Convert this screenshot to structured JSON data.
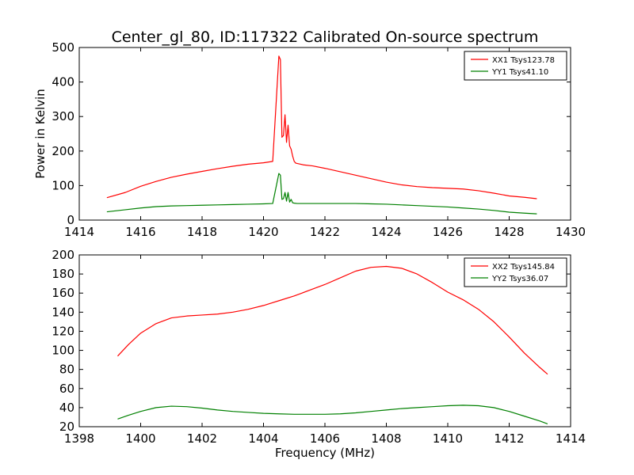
{
  "figure": {
    "title": "Center_gl_80, ID:117322 Calibrated On-source spectrum"
  },
  "chart_data": [
    {
      "type": "line",
      "xlabel": "",
      "ylabel": "Power in Kelvin",
      "xlim": [
        1414,
        1430
      ],
      "ylim": [
        0,
        500
      ],
      "xticks": [
        1414,
        1416,
        1418,
        1420,
        1422,
        1424,
        1426,
        1428,
        1430
      ],
      "yticks": [
        0,
        100,
        200,
        300,
        400,
        500
      ],
      "legend_position": "top-right",
      "series": [
        {
          "name": "XX1 Tsys123.78",
          "color": "#ff0000",
          "x": [
            1414.9,
            1415.5,
            1416.0,
            1416.5,
            1417.0,
            1417.5,
            1418.0,
            1418.5,
            1419.0,
            1419.5,
            1420.0,
            1420.3,
            1420.5,
            1420.55,
            1420.6,
            1420.65,
            1420.7,
            1420.75,
            1420.8,
            1420.85,
            1420.9,
            1420.95,
            1421.0,
            1421.05,
            1421.15,
            1421.3,
            1421.6,
            1422.0,
            1422.5,
            1423.0,
            1423.5,
            1424.0,
            1424.5,
            1425.0,
            1425.5,
            1426.0,
            1426.5,
            1427.0,
            1427.5,
            1428.0,
            1428.5,
            1428.9
          ],
          "y": [
            65,
            80,
            98,
            112,
            124,
            133,
            141,
            149,
            156,
            162,
            166,
            170,
            475,
            465,
            240,
            245,
            305,
            225,
            275,
            215,
            205,
            185,
            170,
            165,
            163,
            160,
            157,
            150,
            140,
            130,
            120,
            110,
            102,
            97,
            94,
            92,
            90,
            85,
            78,
            70,
            66,
            62
          ]
        },
        {
          "name": "YY1 Tsys41.10",
          "color": "#008000",
          "x": [
            1414.9,
            1415.5,
            1416.0,
            1416.5,
            1417.0,
            1417.5,
            1418.0,
            1418.5,
            1419.0,
            1419.5,
            1420.0,
            1420.3,
            1420.5,
            1420.55,
            1420.6,
            1420.65,
            1420.7,
            1420.75,
            1420.8,
            1420.85,
            1420.9,
            1420.95,
            1421.0,
            1421.1,
            1421.3,
            1421.6,
            1422.0,
            1422.5,
            1423.0,
            1423.5,
            1424.0,
            1424.5,
            1425.0,
            1425.5,
            1426.0,
            1426.5,
            1427.0,
            1427.5,
            1428.0,
            1428.5,
            1428.9
          ],
          "y": [
            24,
            30,
            35,
            39,
            41,
            42,
            43,
            44,
            45,
            46,
            47,
            48,
            135,
            130,
            60,
            62,
            80,
            55,
            80,
            52,
            60,
            50,
            49,
            48,
            48,
            48,
            48,
            48,
            48,
            47,
            46,
            44,
            42,
            40,
            38,
            35,
            32,
            28,
            23,
            20,
            18
          ]
        }
      ]
    },
    {
      "type": "line",
      "xlabel": "Frequency (MHz)",
      "ylabel": "",
      "xlim": [
        1398,
        1414
      ],
      "ylim": [
        20,
        200
      ],
      "xticks": [
        1398,
        1400,
        1402,
        1404,
        1406,
        1408,
        1410,
        1412,
        1414
      ],
      "yticks": [
        20,
        40,
        60,
        80,
        100,
        120,
        140,
        160,
        180,
        200
      ],
      "legend_position": "top-right",
      "series": [
        {
          "name": "XX2 Tsys145.84",
          "color": "#ff0000",
          "x": [
            1399.25,
            1399.6,
            1400.0,
            1400.5,
            1401.0,
            1401.5,
            1402.0,
            1402.5,
            1403.0,
            1403.5,
            1404.0,
            1404.5,
            1405.0,
            1405.5,
            1406.0,
            1406.5,
            1407.0,
            1407.5,
            1408.0,
            1408.5,
            1409.0,
            1409.5,
            1410.0,
            1410.5,
            1411.0,
            1411.5,
            1412.0,
            1412.5,
            1413.0,
            1413.25
          ],
          "y": [
            94,
            106,
            118,
            128,
            134,
            136,
            137,
            138,
            140,
            143,
            147,
            152,
            157,
            163,
            169,
            176,
            183,
            187,
            188,
            186,
            180,
            171,
            161,
            153,
            143,
            130,
            114,
            97,
            82,
            75
          ]
        },
        {
          "name": "YY2 Tsys36.07",
          "color": "#008000",
          "x": [
            1399.25,
            1399.6,
            1400.0,
            1400.5,
            1401.0,
            1401.5,
            1402.0,
            1402.5,
            1403.0,
            1403.5,
            1404.0,
            1404.5,
            1405.0,
            1405.5,
            1406.0,
            1406.5,
            1407.0,
            1407.5,
            1408.0,
            1408.5,
            1409.0,
            1409.5,
            1410.0,
            1410.5,
            1411.0,
            1411.5,
            1412.0,
            1412.5,
            1413.0,
            1413.25
          ],
          "y": [
            28,
            32,
            36,
            40,
            41.5,
            41,
            39.5,
            37.5,
            36,
            35,
            34,
            33.5,
            33,
            33,
            33,
            33.5,
            34.5,
            36,
            37.5,
            39,
            40,
            41,
            42,
            42.5,
            42,
            40,
            36,
            31,
            26,
            23
          ]
        }
      ]
    }
  ]
}
